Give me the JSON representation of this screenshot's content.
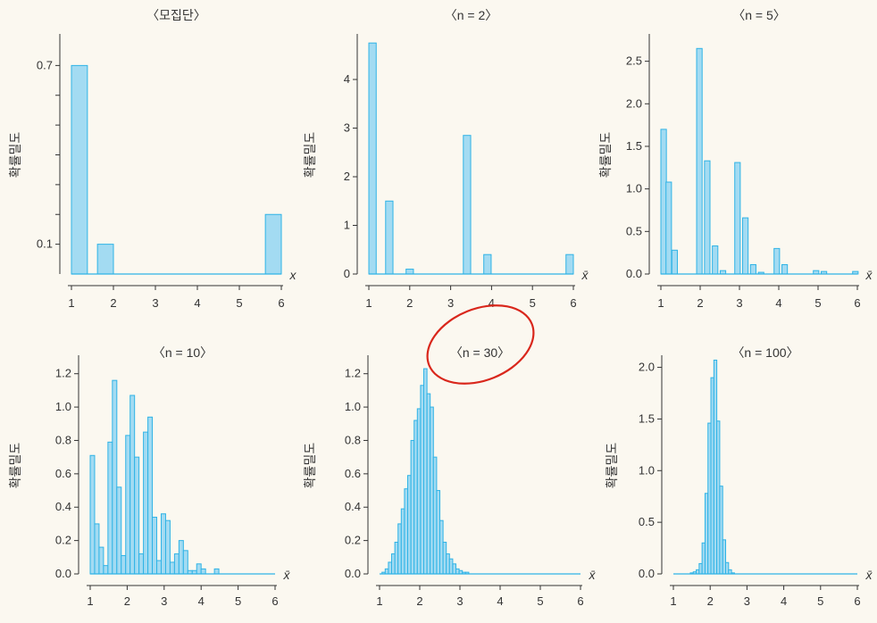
{
  "colors": {
    "bar_fill": "#a3dbf2",
    "bar_stroke": "#2fb3e6",
    "axis": "#333333",
    "highlight": "#d9271c",
    "background": "#fbf8f0"
  },
  "chart_data": [
    {
      "type": "bar",
      "title": "〈모집단〉",
      "ylabel": "확률밀도",
      "xvar": "x",
      "xlim": [
        1,
        6
      ],
      "ylim": [
        0,
        0.8
      ],
      "xticks": [
        1,
        2,
        3,
        4,
        5,
        6
      ],
      "xtick_labels": [
        "1",
        "2",
        "3",
        "4",
        "5",
        "6"
      ],
      "yticks": [
        0.1,
        0.7
      ],
      "ytick_labels": [
        "0.1",
        "0.7"
      ],
      "minor_yticks": [
        0.2,
        0.3,
        0.4,
        0.5,
        0.6
      ],
      "bar_width": 0.38,
      "x": [
        1.19,
        1.81,
        5.81
      ],
      "values": [
        0.7,
        0.1,
        0.2
      ]
    },
    {
      "type": "bar",
      "title": "〈n = 2〉",
      "ylabel": "확률밀도",
      "xvar": "x̄",
      "xlim": [
        1,
        6
      ],
      "ylim": [
        0,
        4.9
      ],
      "xticks": [
        1,
        2,
        3,
        4,
        5,
        6
      ],
      "xtick_labels": [
        "1",
        "2",
        "3",
        "4",
        "5",
        "6"
      ],
      "yticks": [
        0,
        1,
        2,
        3,
        4
      ],
      "ytick_labels": [
        "0",
        "1",
        "2",
        "3",
        "4"
      ],
      "bar_width": 0.18,
      "x": [
        1.09,
        1.5,
        2.0,
        3.4,
        3.9,
        5.91
      ],
      "values": [
        4.75,
        1.5,
        0.1,
        2.85,
        0.4,
        0.4
      ]
    },
    {
      "type": "bar",
      "title": "〈n = 5〉",
      "ylabel": "확률밀도",
      "xvar": "x̄",
      "xlim": [
        1,
        6
      ],
      "ylim": [
        0,
        2.8
      ],
      "xticks": [
        1,
        2,
        3,
        4,
        5,
        6
      ],
      "xtick_labels": [
        "1",
        "2",
        "3",
        "4",
        "5",
        "6"
      ],
      "yticks": [
        0,
        0.5,
        1,
        1.5,
        2,
        2.5
      ],
      "ytick_labels": [
        "0.0",
        "0.5",
        "1.0",
        "1.5",
        "2.0",
        "2.5"
      ],
      "bar_width": 0.14,
      "x": [
        1.07,
        1.2,
        1.35,
        1.98,
        2.18,
        2.38,
        2.58,
        2.95,
        3.15,
        3.35,
        3.55,
        3.95,
        4.15,
        4.95,
        5.15,
        5.95
      ],
      "values": [
        1.7,
        1.08,
        0.28,
        2.65,
        1.33,
        0.33,
        0.04,
        1.31,
        0.66,
        0.11,
        0.02,
        0.3,
        0.11,
        0.04,
        0.03,
        0.03
      ]
    },
    {
      "type": "bar",
      "title": "〈n = 10〉",
      "ylabel": "확률밀도",
      "xvar": "x̄",
      "xlim": [
        1,
        6
      ],
      "ylim": [
        0,
        1.3
      ],
      "xticks": [
        1,
        2,
        3,
        4,
        5,
        6
      ],
      "xtick_labels": [
        "1",
        "2",
        "3",
        "4",
        "5",
        "6"
      ],
      "yticks": [
        0,
        0.2,
        0.4,
        0.6,
        0.8,
        1.0,
        1.2
      ],
      "ytick_labels": [
        "0.0",
        "0.2",
        "0.4",
        "0.6",
        "0.8",
        "1.0",
        "1.2"
      ],
      "bar_width": 0.12,
      "x": [
        1.06,
        1.18,
        1.3,
        1.42,
        1.54,
        1.66,
        1.78,
        1.9,
        2.02,
        2.14,
        2.26,
        2.38,
        2.5,
        2.62,
        2.74,
        2.86,
        2.98,
        3.1,
        3.22,
        3.34,
        3.46,
        3.58,
        3.7,
        3.82,
        3.94,
        4.06,
        4.18,
        4.3,
        4.42
      ],
      "values": [
        0.71,
        0.3,
        0.16,
        0.05,
        0.79,
        1.16,
        0.52,
        0.11,
        0.83,
        1.07,
        0.7,
        0.12,
        0.85,
        0.94,
        0.34,
        0.08,
        0.36,
        0.32,
        0.07,
        0.12,
        0.2,
        0.14,
        0.02,
        0.02,
        0.06,
        0.03,
        0.0,
        0.0,
        0.03
      ]
    },
    {
      "type": "bar",
      "title": "〈n = 30〉",
      "ylabel": "확률밀도",
      "xvar": "x̄",
      "xlim": [
        1,
        6
      ],
      "ylim": [
        0,
        1.3
      ],
      "xticks": [
        1,
        2,
        3,
        4,
        5,
        6
      ],
      "xtick_labels": [
        "1",
        "2",
        "3",
        "4",
        "5",
        "6"
      ],
      "yticks": [
        0,
        0.2,
        0.4,
        0.6,
        0.8,
        1.0,
        1.2
      ],
      "ytick_labels": [
        "0.0",
        "0.2",
        "0.4",
        "0.6",
        "0.8",
        "1.0",
        "1.2"
      ],
      "bar_width": 0.08,
      "x": [
        1.1,
        1.18,
        1.26,
        1.34,
        1.42,
        1.5,
        1.58,
        1.66,
        1.74,
        1.82,
        1.9,
        1.98,
        2.06,
        2.14,
        2.22,
        2.3,
        2.38,
        2.46,
        2.54,
        2.62,
        2.7,
        2.78,
        2.86,
        2.94,
        3.02,
        3.1,
        3.18
      ],
      "values": [
        0.01,
        0.03,
        0.07,
        0.12,
        0.19,
        0.3,
        0.39,
        0.51,
        0.59,
        0.8,
        0.92,
        0.99,
        1.13,
        1.23,
        1.08,
        1.0,
        0.7,
        0.5,
        0.32,
        0.19,
        0.12,
        0.09,
        0.06,
        0.03,
        0.02,
        0.01,
        0.01
      ]
    },
    {
      "type": "bar",
      "title": "〈n = 100〉",
      "ylabel": "확률밀도",
      "xvar": "x̄",
      "xlim": [
        1,
        6
      ],
      "ylim": [
        0,
        2.1
      ],
      "xticks": [
        1,
        2,
        3,
        4,
        5,
        6
      ],
      "xtick_labels": [
        "1",
        "2",
        "3",
        "4",
        "5",
        "6"
      ],
      "yticks": [
        0,
        0.5,
        1,
        1.5,
        2
      ],
      "ytick_labels": [
        "0.0",
        "0.5",
        "1.0",
        "1.5",
        "2.0"
      ],
      "bar_width": 0.08,
      "x": [
        1.5,
        1.58,
        1.66,
        1.74,
        1.82,
        1.9,
        1.98,
        2.06,
        2.14,
        2.22,
        2.3,
        2.38,
        2.46,
        2.54,
        2.62
      ],
      "values": [
        0.01,
        0.02,
        0.04,
        0.1,
        0.3,
        0.78,
        1.46,
        1.9,
        2.07,
        1.48,
        0.85,
        0.33,
        0.11,
        0.04,
        0.01
      ]
    }
  ]
}
